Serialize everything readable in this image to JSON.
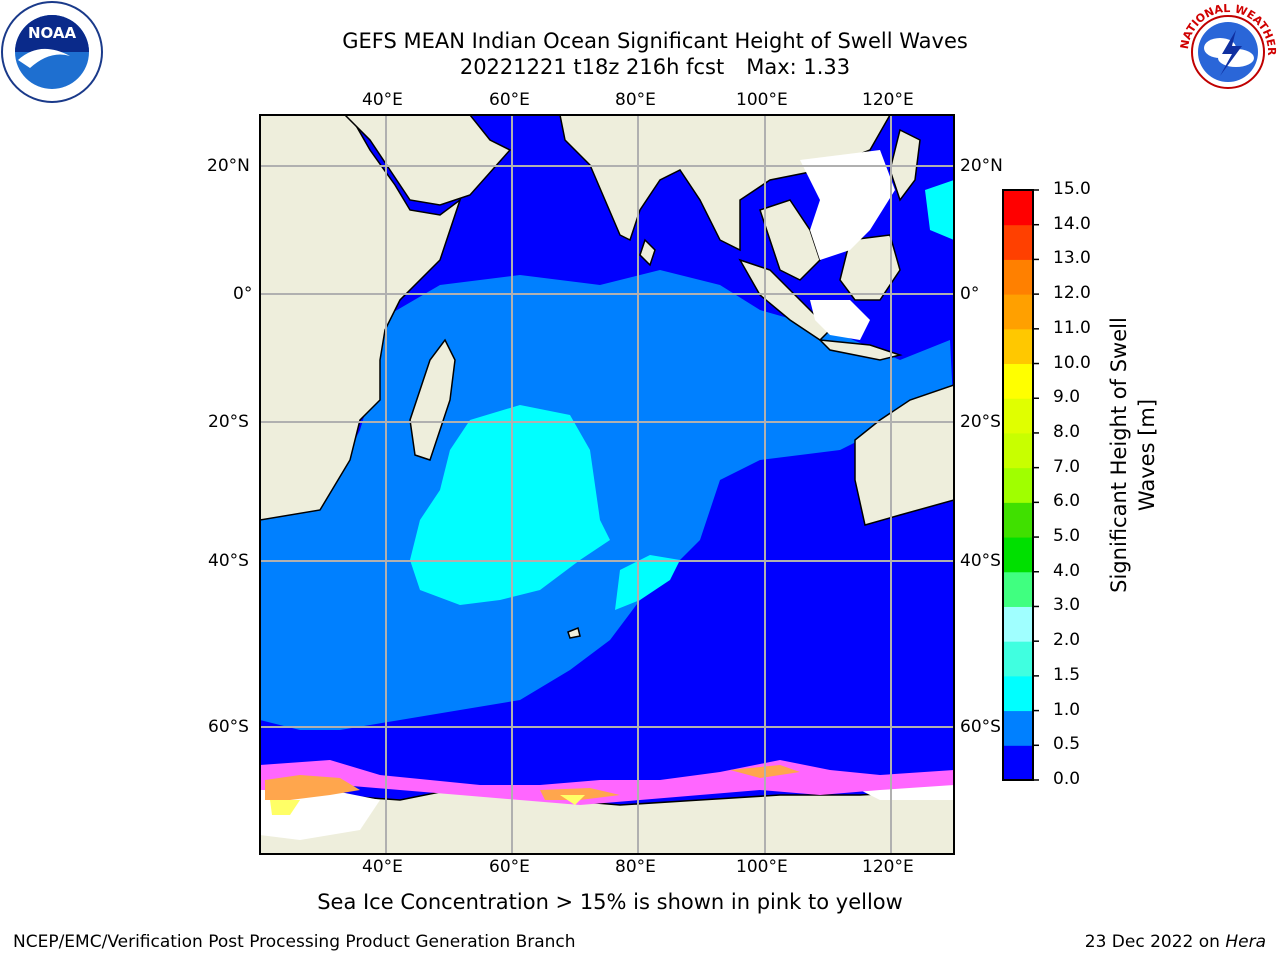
{
  "header": {
    "title_line1": "GEFS MEAN Indian Ocean Significant Height of Swell Waves",
    "title_line2_run": "20221221 t18z 216h fcst",
    "title_line2_max": "Max: 1.33"
  },
  "logos": {
    "left": "NOAA",
    "right": "NATIONAL WEATHER SERVICE"
  },
  "map": {
    "top_lon_labels": [
      "40°E",
      "60°E",
      "80°E",
      "100°E",
      "120°E"
    ],
    "bottom_lon_labels": [
      "40°E",
      "60°E",
      "80°E",
      "100°E",
      "120°E"
    ],
    "left_lat_labels": [
      "20°N",
      "0°",
      "20°S",
      "40°S",
      "60°S"
    ],
    "right_lat_labels": [
      "20°N",
      "0°",
      "20°S",
      "40°S",
      "60°S"
    ],
    "land_color": "#eeeedc",
    "ice_colors": [
      "#ff66ff",
      "#ffa64d",
      "#ffff66"
    ]
  },
  "colorbar": {
    "title": "Significant Height of Swell Waves [m]",
    "ticks": [
      "0.0",
      "0.5",
      "1.0",
      "1.5",
      "2.0",
      "3.0",
      "4.0",
      "5.0",
      "6.0",
      "7.0",
      "8.0",
      "9.0",
      "10.0",
      "11.0",
      "12.0",
      "13.0",
      "14.0",
      "15.0"
    ],
    "colors": [
      "#0000ff",
      "#0080ff",
      "#00ffff",
      "#40ffe0",
      "#a0ffff",
      "#40ff80",
      "#00e000",
      "#40e000",
      "#a0ff00",
      "#c8ff00",
      "#e0ff00",
      "#ffff00",
      "#ffc800",
      "#ffa000",
      "#ff8000",
      "#ff4000",
      "#ff0000"
    ]
  },
  "caption": "Sea Ice Concentration > 15% is shown in pink to yellow",
  "footer": {
    "left": "NCEP/EMC/Verification Post Processing Product Generation Branch",
    "right_prefix": "23 Dec 2022 on",
    "right_host": "Hera"
  }
}
